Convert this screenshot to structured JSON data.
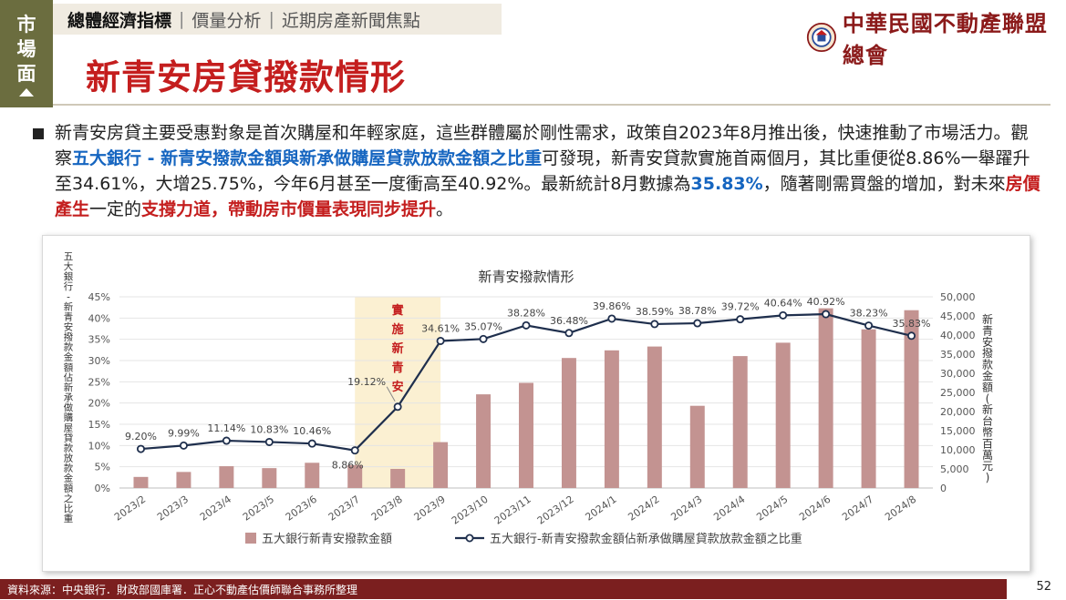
{
  "side_tab": {
    "chars": [
      "市",
      "場",
      "面"
    ]
  },
  "nav": {
    "active": "總體經濟指標",
    "items": [
      "價量分析",
      "近期房產新聞焦點"
    ]
  },
  "title": "新青安房貸撥款情形",
  "logo": {
    "text": "中華民國不動產聯盟總會"
  },
  "paragraph": {
    "p1": "新青安房貸主要受惠對象是首次購屋和年輕家庭，這些群體屬於剛性需求，政策自2023年8月推出後，快速推動了市場活力。觀察",
    "h1": "五大銀行 - 新青安撥款金額與新承做購屋貸款放款金額之比重",
    "p2": "可發現，新青安貸款實施首兩個月，其比重便從8.86%一舉躍升至34.61%，大增25.75%，今年6月甚至一度衝高至40.92%。最新統計8月數據為",
    "h2": "35.83%",
    "p3": "，隨著剛需買盤的增加，對未來",
    "r1": "房價產生",
    "p4": "一定的",
    "r2": "支撐力道，帶動房市價量表現同步提升",
    "p5": "。"
  },
  "chart_data": {
    "type": "bar+line",
    "title": "新青安撥款情形",
    "categories": [
      "2023/2",
      "2023/3",
      "2023/4",
      "2023/5",
      "2023/6",
      "2023/7",
      "2023/8",
      "2023/9",
      "2023/10",
      "2023/11",
      "2023/12",
      "2024/1",
      "2024/2",
      "2024/3",
      "2024/4",
      "2024/5",
      "2024/6",
      "2024/7",
      "2024/8"
    ],
    "series": [
      {
        "name": "五大銀行新青安撥款金額",
        "kind": "bar",
        "axis": "right",
        "color": "#c39391",
        "values": [
          2900,
          4200,
          5700,
          5200,
          6600,
          6000,
          5000,
          12000,
          24500,
          27500,
          34000,
          36000,
          37000,
          21500,
          34500,
          38000,
          47000,
          41500,
          46500
        ]
      },
      {
        "name": "五大銀行-新青安撥款金額佔新承做購屋貸款放款金額之比重",
        "kind": "line",
        "axis": "left",
        "color": "#1f2f4d",
        "values": [
          9.2,
          9.99,
          11.14,
          10.83,
          10.46,
          8.86,
          19.12,
          34.61,
          35.07,
          38.28,
          36.48,
          39.86,
          38.59,
          38.78,
          39.72,
          40.64,
          40.92,
          38.23,
          35.83
        ],
        "labels": [
          "9.20%",
          "9.99%",
          "11.14%",
          "10.83%",
          "10.46%",
          "8.86%",
          "19.12%",
          "34.61%",
          "35.07%",
          "38.28%",
          "36.48%",
          "39.86%",
          "38.59%",
          "38.78%",
          "39.72%",
          "40.64%",
          "40.92%",
          "38.23%",
          "35.83%"
        ]
      }
    ],
    "left_axis": {
      "label": "五大銀行-新青安撥款金額佔新承做購屋貸款放款金額之比重",
      "ylim": [
        0,
        45
      ],
      "ticks": [
        "0%",
        "5%",
        "10%",
        "15%",
        "20%",
        "25%",
        "30%",
        "35%",
        "40%",
        "45%"
      ]
    },
    "right_axis": {
      "label": "新青安撥款金額(新台幣百萬元)",
      "ylim": [
        0,
        50000
      ],
      "ticks": [
        "0",
        "5,000",
        "10,000",
        "15,000",
        "20,000",
        "25,000",
        "30,000",
        "35,000",
        "40,000",
        "45,000",
        "50,000"
      ]
    },
    "highlight": {
      "from": "2023/7",
      "to": "2023/9",
      "color": "#fbf0d2",
      "label": "實施新青安"
    },
    "legend_position": "bottom",
    "grid": true
  },
  "footer": {
    "source": "資料來源：中央銀行．財政部國庫署．正心不動產估價師聯合事務所整理"
  },
  "page_number": "52"
}
